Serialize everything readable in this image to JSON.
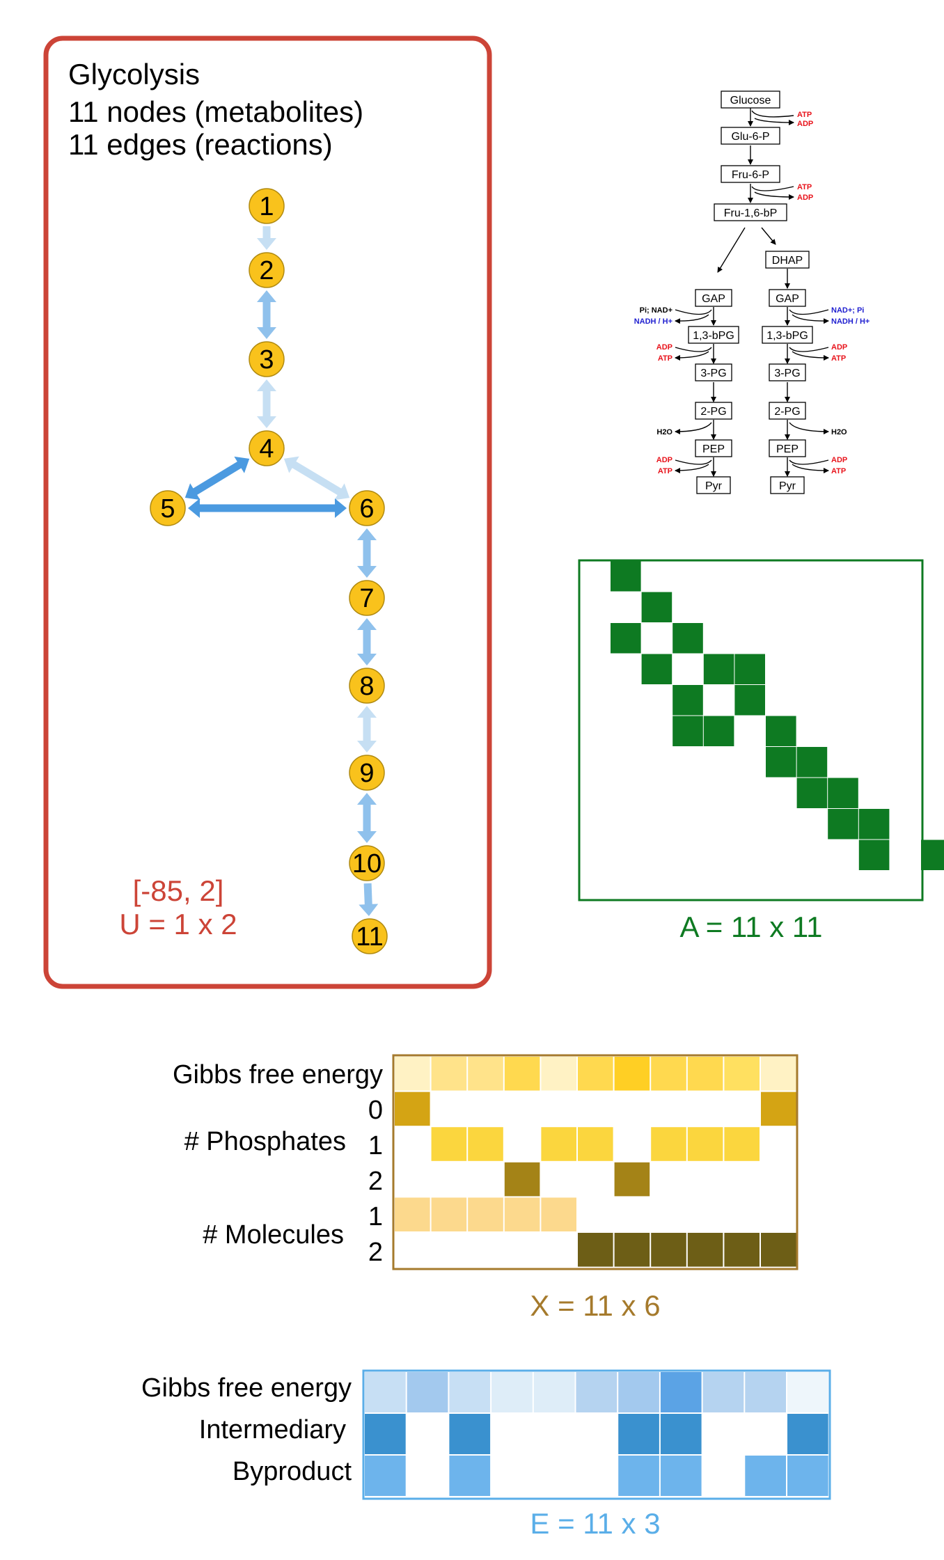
{
  "graph_panel": {
    "title": "Glycolysis",
    "line1": "11 nodes (metabolites)",
    "line2": "11 edges (reactions)",
    "u_values": "[-85, 2]",
    "u_dims": "U = 1 x 2",
    "frame_color": "#cc4437",
    "node_color": "#f9c21c",
    "nodes": [
      "1",
      "2",
      "3",
      "4",
      "5",
      "6",
      "7",
      "8",
      "9",
      "10",
      "11"
    ],
    "edges": [
      {
        "from": 1,
        "to": 2,
        "direction": "forward",
        "shade": "light"
      },
      {
        "from": 2,
        "to": 3,
        "direction": "both",
        "shade": "mid"
      },
      {
        "from": 3,
        "to": 4,
        "direction": "both",
        "shade": "light"
      },
      {
        "from": 4,
        "to": 5,
        "direction": "both",
        "shade": "dark"
      },
      {
        "from": 4,
        "to": 6,
        "direction": "both",
        "shade": "light"
      },
      {
        "from": 5,
        "to": 6,
        "direction": "both",
        "shade": "dark"
      },
      {
        "from": 6,
        "to": 7,
        "direction": "both",
        "shade": "mid"
      },
      {
        "from": 7,
        "to": 8,
        "direction": "both",
        "shade": "mid"
      },
      {
        "from": 8,
        "to": 9,
        "direction": "both",
        "shade": "light"
      },
      {
        "from": 9,
        "to": 10,
        "direction": "both",
        "shade": "mid"
      },
      {
        "from": 10,
        "to": 11,
        "direction": "forward",
        "shade": "mid"
      }
    ]
  },
  "pathway": {
    "main": [
      "Glucose",
      "Glu-6-P",
      "Fru-6-P",
      "Fru-1,6-bP"
    ],
    "dhap": "DHAP",
    "left_branch": [
      "GAP",
      "1,3-bPG",
      "3-PG",
      "2-PG",
      "PEP",
      "Pyr"
    ],
    "right_branch": [
      "GAP",
      "1,3-bPG",
      "3-PG",
      "2-PG",
      "PEP",
      "Pyr"
    ],
    "atp": "ATP",
    "adp": "ADP",
    "nad_left": "Pi; NAD+",
    "nadh_left": "NADH / H+",
    "nad_right": "NAD+; Pi",
    "nadh_right": "NADH / H+",
    "water": "H2O",
    "red_color": "#e8131b",
    "blue_color": "#1f1fd0"
  },
  "adjacency": {
    "label": "A = 11 x 11",
    "color": "#0e7a22",
    "filled_cells": [
      [
        0,
        0
      ],
      [
        1,
        1
      ],
      [
        2,
        0
      ],
      [
        2,
        2
      ],
      [
        3,
        1
      ],
      [
        3,
        3
      ],
      [
        3,
        4
      ],
      [
        4,
        2
      ],
      [
        4,
        4
      ],
      [
        5,
        2
      ],
      [
        5,
        3
      ],
      [
        5,
        5
      ],
      [
        6,
        5
      ],
      [
        6,
        6
      ],
      [
        7,
        6
      ],
      [
        7,
        7
      ],
      [
        8,
        7
      ],
      [
        8,
        8
      ],
      [
        9,
        8
      ],
      [
        9,
        10
      ]
    ]
  },
  "node_features": {
    "label": "X = 11 x 6",
    "frame_color": "#a57a2c",
    "row_labels": [
      "Gibbs free energy",
      "0",
      "1",
      "2",
      "1",
      "2"
    ],
    "group_labels": [
      "# Phosphates",
      "# Molecules"
    ],
    "cells": [
      [
        "#fff2c4",
        "#ffe38a",
        "#ffe38a",
        "#ffd94f",
        "#fff2c4",
        "#ffd94f",
        "#ffcf24",
        "#ffd94f",
        "#ffd94f",
        "#ffe060",
        "#fff2c4"
      ],
      [
        "#d4a414",
        "",
        "",
        "",
        "",
        "",
        "",
        "",
        "",
        "",
        "#d4a414"
      ],
      [
        "",
        "#fbd63e",
        "#fbd63e",
        "",
        "#fbd63e",
        "#fbd63e",
        "",
        "#fbd63e",
        "#fbd63e",
        "#fbd63e",
        ""
      ],
      [
        "",
        "",
        "",
        "#a48317",
        "",
        "",
        "#a48317",
        "",
        "",
        "",
        ""
      ],
      [
        "#fcd98d",
        "#fcd98d",
        "#fcd98d",
        "#fcd98d",
        "#fcd98d",
        "",
        "",
        "",
        "",
        "",
        ""
      ],
      [
        "",
        "",
        "",
        "",
        "",
        "#6d5e16",
        "#6d5e16",
        "#6d5e16",
        "#6d5e16",
        "#6d5e16",
        "#6d5e16"
      ]
    ]
  },
  "edge_features": {
    "label": "E = 11 x 3",
    "frame_color": "#5aaee8",
    "row_labels": [
      "Gibbs free energy",
      "Intermediary",
      "Byproduct"
    ],
    "cells": [
      [
        "#c7dff4",
        "#a3c9ee",
        "#c7dff4",
        "#deedf8",
        "#deedf8",
        "#b5d3f0",
        "#a3c9ee",
        "#5ba3e5",
        "#b5d3f0",
        "#b5d3f0",
        "#eef6fb"
      ],
      [
        "#3a91cf",
        "",
        "#3a91cf",
        "",
        "",
        "",
        "#3a91cf",
        "#3a91cf",
        "",
        "",
        "#3a91cf"
      ],
      [
        "#6db4ec",
        "",
        "#6db4ec",
        "",
        "",
        "",
        "#6db4ec",
        "#6db4ec",
        "",
        "#6db4ec",
        "#6db4ec"
      ]
    ]
  }
}
